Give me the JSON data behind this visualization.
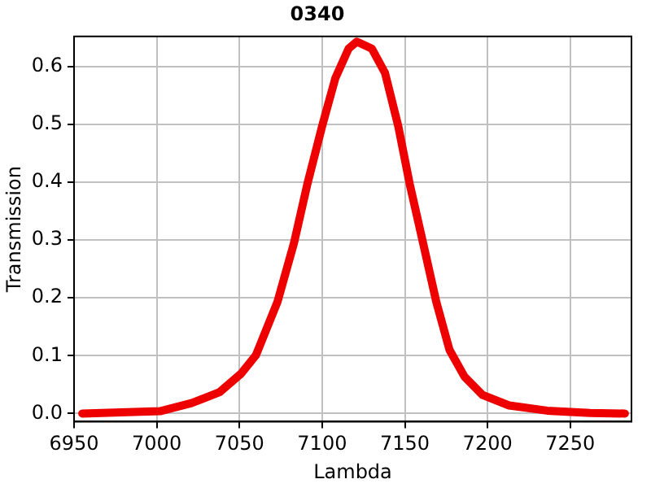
{
  "chart_data": {
    "type": "line",
    "title": "0340",
    "xlabel": "Lambda",
    "ylabel": "Transmission",
    "xlim": [
      6950,
      7287
    ],
    "xticks": [
      6950,
      7000,
      7050,
      7100,
      7150,
      7200,
      7250
    ],
    "ylim": [
      -0.014,
      0.652
    ],
    "yticks": [
      {
        "value": 0,
        "label": "0.0"
      },
      {
        "value": 0.1,
        "label": "0.1"
      },
      {
        "value": 0.2,
        "label": "0.2"
      },
      {
        "value": 0.3,
        "label": "0.3"
      },
      {
        "value": 0.4,
        "label": "0.4"
      },
      {
        "value": 0.5,
        "label": "0.5"
      },
      {
        "value": 0.6,
        "label": "0.6"
      }
    ],
    "grid": true,
    "legend": false,
    "marker": "none",
    "line_style": "solid",
    "series": [
      {
        "color": "#ee0000",
        "x": [
          6955,
          7002,
          7021,
          7038,
          7051,
          7060,
          7073,
          7083,
          7091,
          7100,
          7108,
          7116,
          7121,
          7130,
          7138,
          7146,
          7153,
          7161,
          7169,
          7177,
          7186,
          7197,
          7213,
          7236,
          7262,
          7283
        ],
        "values": [
          0,
          0.004,
          0.018,
          0.037,
          0.069,
          0.101,
          0.193,
          0.295,
          0.396,
          0.497,
          0.58,
          0.631,
          0.643,
          0.631,
          0.589,
          0.497,
          0.396,
          0.295,
          0.193,
          0.11,
          0.064,
          0.032,
          0.014,
          0.005,
          0.001,
          0
        ]
      }
    ]
  }
}
